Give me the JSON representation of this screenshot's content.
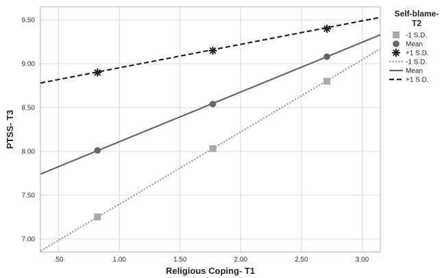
{
  "chart_data": {
    "type": "line",
    "xlabel": "Religious Coping- T1",
    "ylabel": "PTSS- T3",
    "xlim": [
      0.35,
      3.15
    ],
    "ylim": [
      6.85,
      9.65
    ],
    "xticks": [
      ".50",
      "1.00",
      "1.50",
      "2.00",
      "2.50",
      "3.00"
    ],
    "xtick_values": [
      0.5,
      1.0,
      1.5,
      2.0,
      2.5,
      3.0
    ],
    "yticks": [
      "7.00",
      "7.50",
      "8.00",
      "8.50",
      "9.00",
      "9.50"
    ],
    "ytick_values": [
      7.0,
      7.5,
      8.0,
      8.5,
      9.0,
      9.5
    ],
    "grid": true,
    "legend": {
      "title_lines": [
        "Self-blame-",
        "T2"
      ],
      "placement": "right",
      "entries": [
        {
          "label": "-1  S.D.",
          "kind": "marker",
          "series": "minus"
        },
        {
          "label": "Mean",
          "kind": "marker",
          "series": "mean"
        },
        {
          "label": "+1  S.D.",
          "kind": "marker",
          "series": "plus"
        },
        {
          "label": "-1  S.D.",
          "kind": "line",
          "series": "minus"
        },
        {
          "label": "Mean",
          "kind": "line",
          "series": "mean"
        },
        {
          "label": "+1  S.D.",
          "kind": "line",
          "series": "plus"
        }
      ]
    },
    "series": [
      {
        "id": "minus",
        "name": "-1  S.D.",
        "x": [
          0.82,
          1.77,
          2.71
        ],
        "y": [
          7.25,
          8.03,
          8.8
        ],
        "fit": {
          "x": [
            0.35,
            3.15
          ],
          "y": [
            6.86,
            9.17
          ]
        },
        "color": "#aaaaaa",
        "marker": "square",
        "line_style": "dotted"
      },
      {
        "id": "mean",
        "name": "Mean",
        "x": [
          0.82,
          1.77,
          2.71
        ],
        "y": [
          8.01,
          8.54,
          9.08
        ],
        "fit": {
          "x": [
            0.35,
            3.15
          ],
          "y": [
            7.74,
            9.33
          ]
        },
        "color": "#666666",
        "marker": "circle",
        "line_style": "solid"
      },
      {
        "id": "plus",
        "name": "+1  S.D.",
        "x": [
          0.82,
          1.77,
          2.71
        ],
        "y": [
          8.9,
          9.15,
          9.4
        ],
        "fit": {
          "x": [
            0.35,
            3.15
          ],
          "y": [
            8.78,
            9.53
          ]
        },
        "color": "#222222",
        "marker": "star",
        "line_style": "dashed"
      }
    ]
  }
}
